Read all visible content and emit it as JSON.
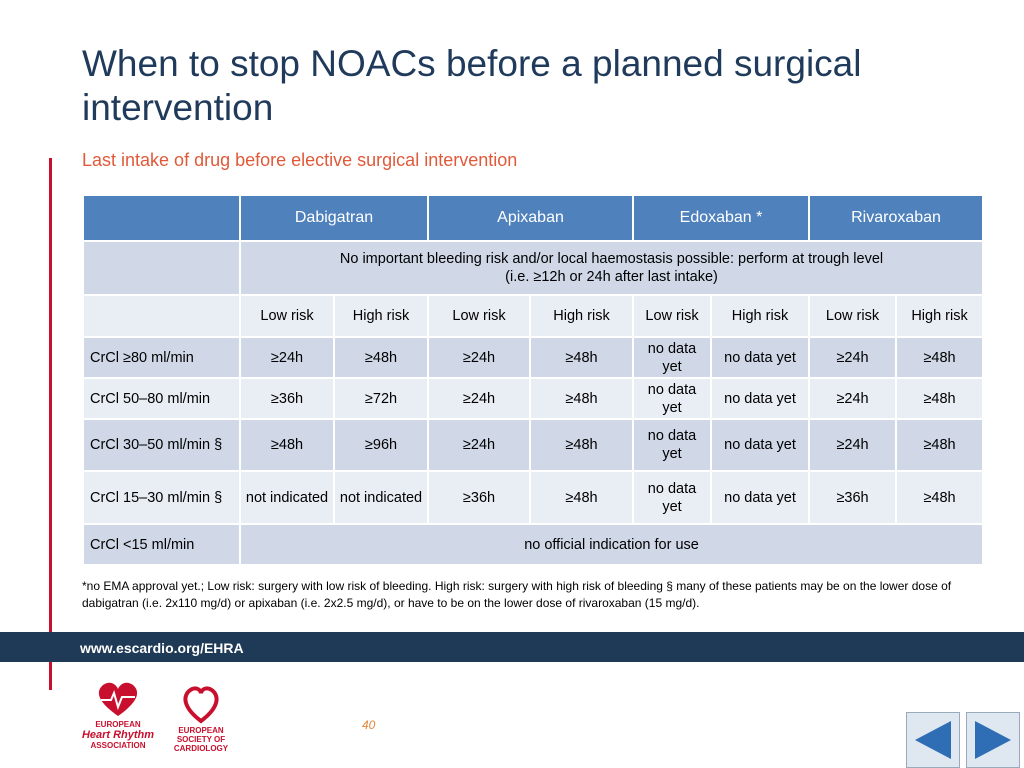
{
  "title": "When to stop NOACs before a planned surgical intervention",
  "subtitle": "Last intake of drug before elective surgical intervention",
  "table": {
    "drugs": [
      "Dabigatran",
      "Apixaban",
      "Edoxaban *",
      "Rivaroxaban"
    ],
    "note_row": [
      "No important bleeding risk and/or local haemostasis possible: perform at trough level",
      "(i.e. ≥12h or 24h after last intake)"
    ],
    "risk_headers": [
      "Low risk",
      "High risk",
      "Low risk",
      "High risk",
      "Low risk",
      "High risk",
      "Low risk",
      "High risk"
    ],
    "rows": [
      {
        "label": "CrCl ≥80 ml/min",
        "cells": [
          "≥24h",
          "≥48h",
          "≥24h",
          "≥48h",
          "no data yet",
          "no data yet",
          "≥24h",
          "≥48h"
        ]
      },
      {
        "label": "CrCl 50–80 ml/min",
        "cells": [
          "≥36h",
          "≥72h",
          "≥24h",
          "≥48h",
          "no data yet",
          "no data yet",
          "≥24h",
          "≥48h"
        ]
      },
      {
        "label": "CrCl 30–50 ml/min §",
        "cells": [
          "≥48h",
          "≥96h",
          "≥24h",
          "≥48h",
          "no data yet",
          "no data yet",
          "≥24h",
          "≥48h"
        ]
      },
      {
        "label": "CrCl 15–30 ml/min §",
        "cells": [
          "not indicated",
          "not indicated",
          "≥36h",
          "≥48h",
          "no data yet",
          "no data yet",
          "≥36h",
          "≥48h"
        ]
      }
    ],
    "last_row": {
      "label": "CrCl <15 ml/min",
      "text": "no official indication for use"
    }
  },
  "footnote": "*no EMA approval yet.; Low risk: surgery with low risk of bleeding. High risk: surgery with high risk of bleeding   §  many of these patients may be on the lower dose of dabigatran (i.e. 2x110 mg/d) or apixaban (i.e. 2x2.5 mg/d), or have to be on the lower dose of rivaroxaban (15 mg/d).",
  "footer": {
    "url": "www.escardio.org/EHRA",
    "page": "40",
    "logo_ehra": [
      "EUROPEAN",
      "Heart Rhythm",
      "ASSOCIATION"
    ],
    "logo_esc": [
      "EUROPEAN",
      "SOCIETY OF",
      "CARDIOLOGY"
    ]
  }
}
